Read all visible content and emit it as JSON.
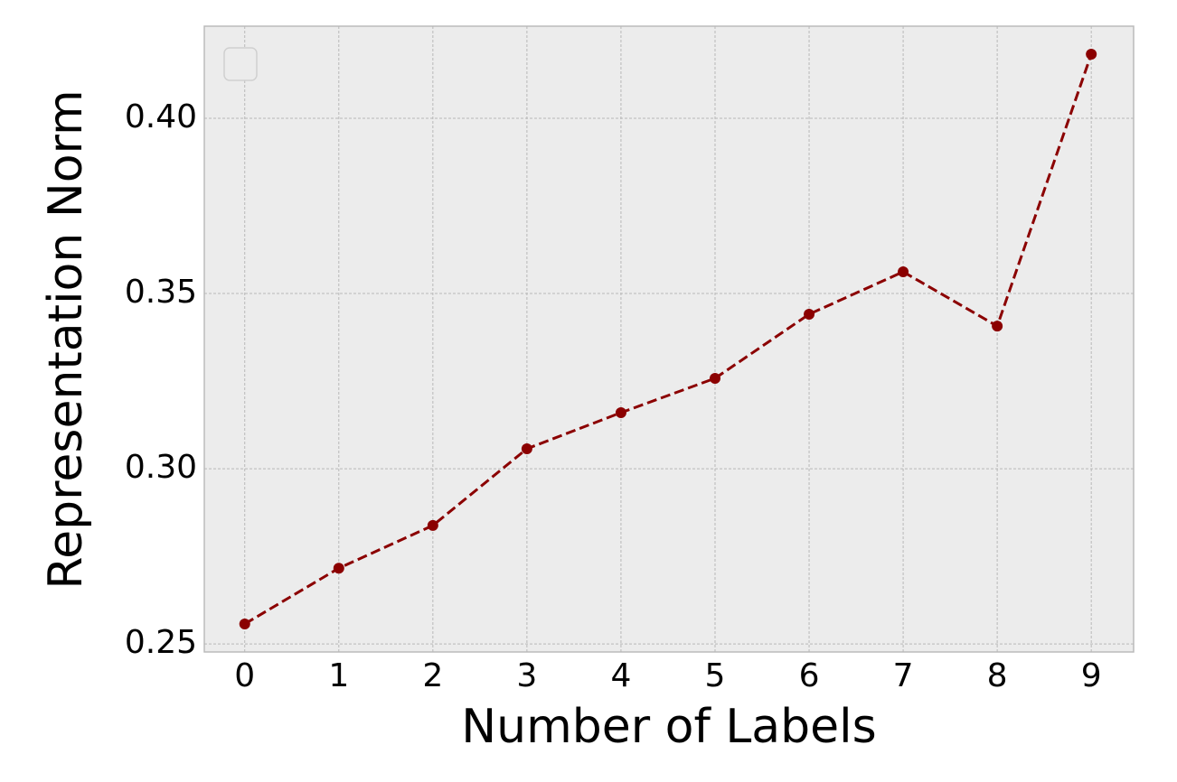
{
  "chart_data": {
    "type": "line",
    "x_label": "Number of Labels",
    "y_label": "Representation Norm",
    "x": [
      0,
      1,
      2,
      3,
      4,
      5,
      6,
      7,
      8,
      9
    ],
    "series": [
      {
        "color": "#8b0000",
        "values": [
          0.2557,
          0.2716,
          0.2838,
          0.3057,
          0.316,
          0.3258,
          0.3441,
          0.3562,
          0.3407,
          0.4183
        ]
      }
    ],
    "xlim": [
      -0.43,
      9.45
    ],
    "xticks": [
      0,
      1,
      2,
      3,
      4,
      5,
      6,
      7,
      8,
      9
    ],
    "ylim": [
      0.2477,
      0.4263
    ],
    "yticks": [
      {
        "value": 0.25,
        "label": "0.25"
      },
      {
        "value": 0.3,
        "label": "0.30"
      },
      {
        "value": 0.35,
        "label": "0.35"
      },
      {
        "value": 0.4,
        "label": "0.40"
      }
    ],
    "grid": true
  }
}
